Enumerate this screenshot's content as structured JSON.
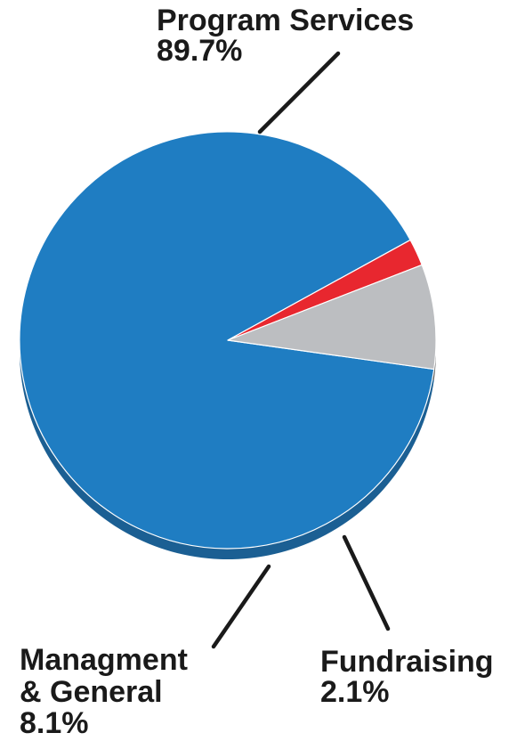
{
  "chart_data": {
    "type": "pie",
    "title": "",
    "slices": [
      {
        "name": "Program Services",
        "value": 89.7,
        "label_value": "89.7%",
        "color": "#1f7dc2",
        "side_color": "#1b5f93"
      },
      {
        "name": "Fundraising",
        "value": 2.1,
        "label_value": "2.1%",
        "color": "#e8272f",
        "side_color": "#a41a20"
      },
      {
        "name": "Managment & General",
        "value": 8.1,
        "label_value": "8.1%",
        "color": "#bcbec1",
        "side_color": "#5a5a5a"
      }
    ]
  },
  "labels": {
    "program": {
      "name": "Program Services",
      "value": "89.7%"
    },
    "mgmt": {
      "line1": "Managment",
      "line2": "& General",
      "value": "8.1%"
    },
    "fund": {
      "name": "Fundraising",
      "value": "2.1%"
    }
  }
}
